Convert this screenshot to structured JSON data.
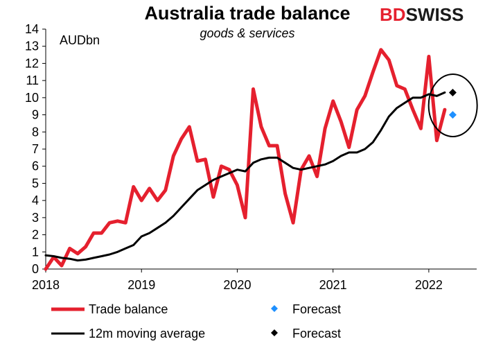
{
  "brand": {
    "part1": "BD",
    "part2": "SWISS",
    "part1_color": "#e5202e",
    "part2_color": "#1a1a1a"
  },
  "chart_data": {
    "type": "line",
    "title": "Australia  trade balance",
    "subtitle": "goods & services",
    "unit_label": "AUDbn",
    "ylim": [
      0,
      14
    ],
    "y_ticks": [
      0,
      1,
      2,
      3,
      4,
      5,
      6,
      7,
      8,
      9,
      10,
      11,
      12,
      13,
      14
    ],
    "xlim": [
      "2018-01",
      "2022-07"
    ],
    "x_ticks": [
      "2018",
      "2019",
      "2020",
      "2021",
      "2022"
    ],
    "grid": false,
    "legend_position": "bottom",
    "series": [
      {
        "name": "Trade balance",
        "color": "#e5202e",
        "points": [
          [
            "2018-01",
            0.0
          ],
          [
            "2018-02",
            0.7
          ],
          [
            "2018-03",
            0.2
          ],
          [
            "2018-04",
            1.2
          ],
          [
            "2018-05",
            0.9
          ],
          [
            "2018-06",
            1.3
          ],
          [
            "2018-07",
            2.1
          ],
          [
            "2018-08",
            2.1
          ],
          [
            "2018-09",
            2.7
          ],
          [
            "2018-10",
            2.8
          ],
          [
            "2018-11",
            2.7
          ],
          [
            "2018-12",
            4.8
          ],
          [
            "2019-01",
            4.0
          ],
          [
            "2019-02",
            4.7
          ],
          [
            "2019-03",
            4.0
          ],
          [
            "2019-04",
            4.6
          ],
          [
            "2019-05",
            6.6
          ],
          [
            "2019-06",
            7.6
          ],
          [
            "2019-07",
            8.3
          ],
          [
            "2019-08",
            6.3
          ],
          [
            "2019-09",
            6.4
          ],
          [
            "2019-10",
            4.2
          ],
          [
            "2019-11",
            6.0
          ],
          [
            "2019-12",
            5.8
          ],
          [
            "2020-01",
            4.9
          ],
          [
            "2020-02",
            3.0
          ],
          [
            "2020-03",
            10.5
          ],
          [
            "2020-04",
            8.3
          ],
          [
            "2020-05",
            7.2
          ],
          [
            "2020-06",
            7.2
          ],
          [
            "2020-07",
            4.4
          ],
          [
            "2020-08",
            2.7
          ],
          [
            "2020-09",
            5.8
          ],
          [
            "2020-10",
            6.6
          ],
          [
            "2020-11",
            5.4
          ],
          [
            "2020-12",
            8.2
          ],
          [
            "2021-01",
            9.8
          ],
          [
            "2021-02",
            8.6
          ],
          [
            "2021-03",
            7.1
          ],
          [
            "2021-04",
            9.3
          ],
          [
            "2021-05",
            10.1
          ],
          [
            "2021-06",
            11.5
          ],
          [
            "2021-07",
            12.8
          ],
          [
            "2021-08",
            12.2
          ],
          [
            "2021-09",
            10.7
          ],
          [
            "2021-10",
            10.5
          ],
          [
            "2021-11",
            9.3
          ],
          [
            "2021-12",
            8.2
          ],
          [
            "2022-01",
            12.4
          ],
          [
            "2022-02",
            7.5
          ],
          [
            "2022-03",
            9.3
          ]
        ]
      },
      {
        "name": "12m moving average",
        "color": "#000000",
        "points": [
          [
            "2018-01",
            0.8
          ],
          [
            "2018-02",
            0.75
          ],
          [
            "2018-03",
            0.65
          ],
          [
            "2018-04",
            0.6
          ],
          [
            "2018-05",
            0.5
          ],
          [
            "2018-06",
            0.55
          ],
          [
            "2018-07",
            0.65
          ],
          [
            "2018-08",
            0.75
          ],
          [
            "2018-09",
            0.85
          ],
          [
            "2018-10",
            1.0
          ],
          [
            "2018-11",
            1.2
          ],
          [
            "2018-12",
            1.4
          ],
          [
            "2019-01",
            1.9
          ],
          [
            "2019-02",
            2.1
          ],
          [
            "2019-03",
            2.4
          ],
          [
            "2019-04",
            2.7
          ],
          [
            "2019-05",
            3.1
          ],
          [
            "2019-06",
            3.6
          ],
          [
            "2019-07",
            4.1
          ],
          [
            "2019-08",
            4.6
          ],
          [
            "2019-09",
            4.9
          ],
          [
            "2019-10",
            5.2
          ],
          [
            "2019-11",
            5.4
          ],
          [
            "2019-12",
            5.6
          ],
          [
            "2020-01",
            5.8
          ],
          [
            "2020-02",
            5.7
          ],
          [
            "2020-03",
            6.2
          ],
          [
            "2020-04",
            6.4
          ],
          [
            "2020-05",
            6.5
          ],
          [
            "2020-06",
            6.5
          ],
          [
            "2020-07",
            6.2
          ],
          [
            "2020-08",
            5.9
          ],
          [
            "2020-09",
            5.8
          ],
          [
            "2020-10",
            5.9
          ],
          [
            "2020-11",
            6.0
          ],
          [
            "2020-12",
            6.1
          ],
          [
            "2021-01",
            6.3
          ],
          [
            "2021-02",
            6.6
          ],
          [
            "2021-03",
            6.8
          ],
          [
            "2021-04",
            6.8
          ],
          [
            "2021-05",
            7.0
          ],
          [
            "2021-06",
            7.4
          ],
          [
            "2021-07",
            8.1
          ],
          [
            "2021-08",
            8.9
          ],
          [
            "2021-09",
            9.4
          ],
          [
            "2021-10",
            9.7
          ],
          [
            "2021-11",
            10.0
          ],
          [
            "2021-12",
            10.0
          ],
          [
            "2022-01",
            10.2
          ],
          [
            "2022-02",
            10.1
          ],
          [
            "2022-03",
            10.3
          ]
        ]
      }
    ],
    "forecasts": [
      {
        "name": "Forecast",
        "color": "#1e90ff",
        "marker": "diamond",
        "x": "2022-04",
        "y": 9.0
      },
      {
        "name": "Forecast",
        "color": "#000000",
        "marker": "diamond",
        "x": "2022-04",
        "y": 10.3
      }
    ],
    "annotation": {
      "shape": "ellipse",
      "color": "#000000",
      "around": "2022 forecasts"
    }
  }
}
